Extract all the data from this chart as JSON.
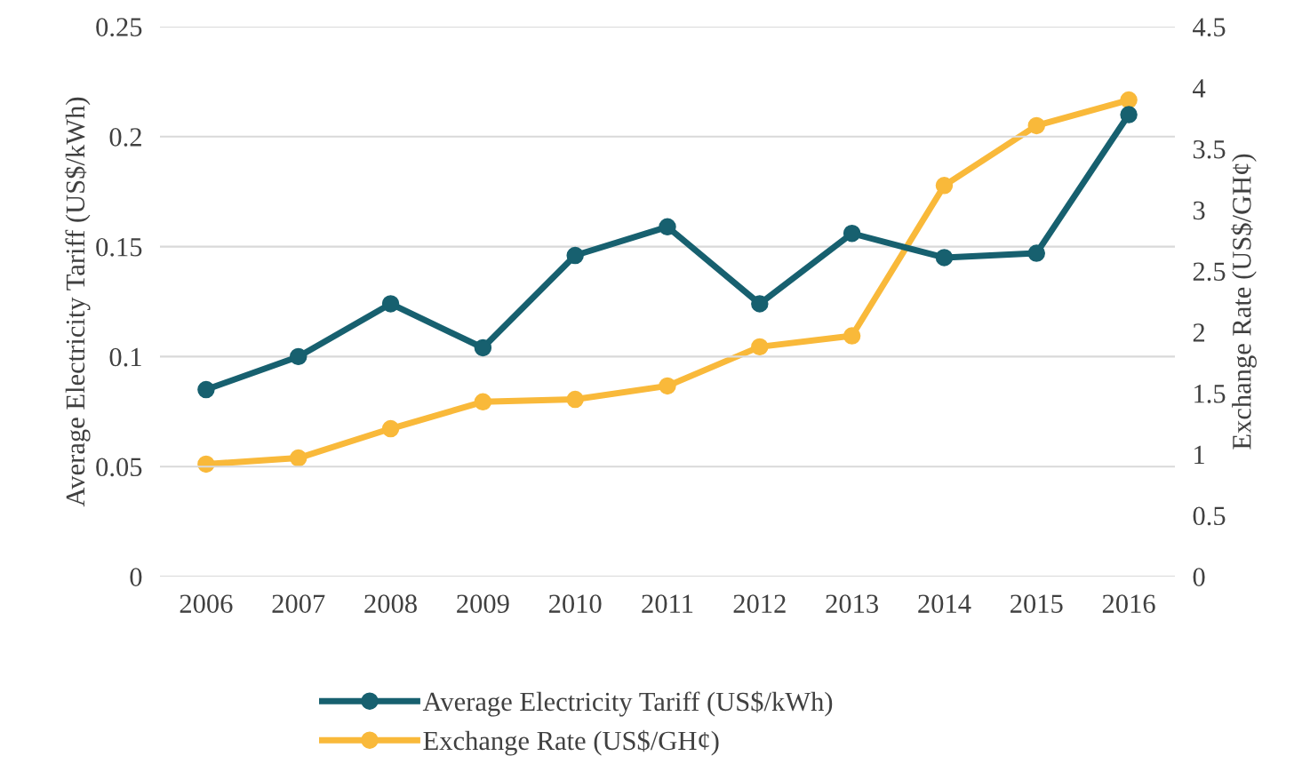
{
  "chart_data": {
    "type": "line",
    "categories": [
      "2006",
      "2007",
      "2008",
      "2009",
      "2010",
      "2011",
      "2012",
      "2013",
      "2014",
      "2015",
      "2016"
    ],
    "ylabel": "Average Electricity Tariff (US$/kWh)",
    "y2label": "Exchange Rate (US$/GH¢)",
    "series": [
      {
        "name": "Average Electricity Tariff (US$/kWh)",
        "color": "#17606f",
        "values": [
          0.085,
          0.1,
          0.124,
          0.104,
          0.146,
          0.159,
          0.124,
          0.156,
          0.145,
          0.147,
          0.21
        ]
      },
      {
        "name": "Exchange Rate (US$/GH¢)",
        "color": "#f9b93a",
        "axis": "y2",
        "values": [
          0.92,
          0.97,
          1.21,
          1.43,
          1.45,
          1.56,
          1.88,
          1.97,
          3.2,
          3.69,
          3.9
        ]
      }
    ],
    "ylim": [
      0,
      0.25
    ],
    "yticks": [
      0,
      0.05,
      0.1,
      0.15,
      0.2,
      0.25
    ],
    "y2lim": [
      0,
      4.5
    ],
    "y2ticks": [
      0,
      0.5,
      1,
      1.5,
      2,
      2.5,
      3,
      3.5,
      4,
      4.5
    ],
    "grid": "y",
    "legend": "bottom",
    "marker": "circle",
    "line_style": "solid"
  }
}
